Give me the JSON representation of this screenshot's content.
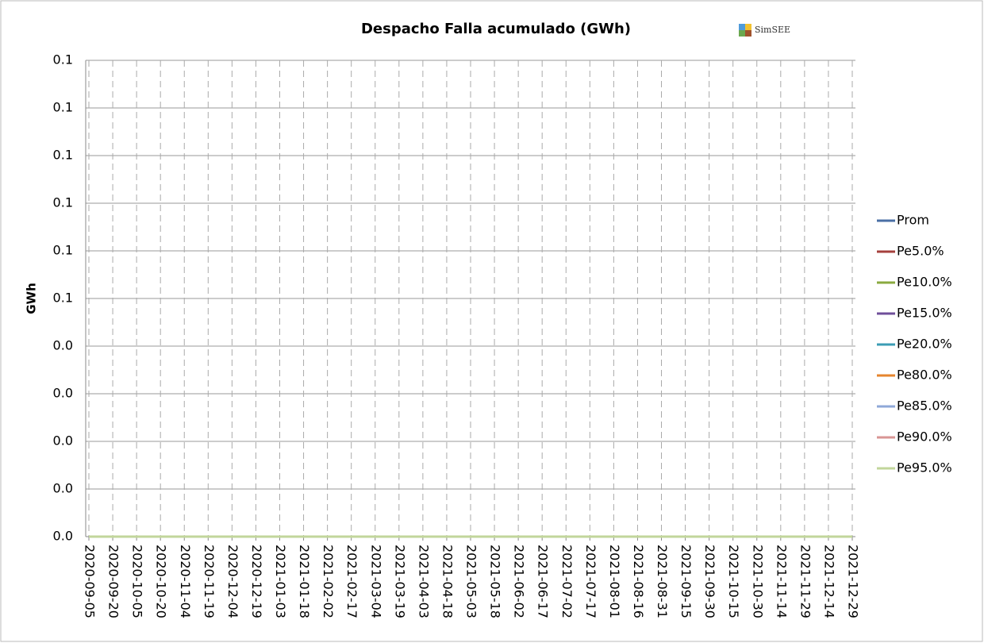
{
  "chart_data": {
    "type": "line",
    "title": "Despacho Falla acumulado (GWh)",
    "annotation": "SimSEE",
    "y_label": "GWh",
    "categories": [
      "2020-09-05",
      "2020-09-20",
      "2020-10-05",
      "2020-10-20",
      "2020-11-04",
      "2020-11-19",
      "2020-12-04",
      "2020-12-19",
      "2021-01-03",
      "2021-01-18",
      "2021-02-02",
      "2021-02-17",
      "2021-03-04",
      "2021-03-19",
      "2021-04-03",
      "2021-04-18",
      "2021-05-03",
      "2021-05-18",
      "2021-06-02",
      "2021-06-17",
      "2021-07-02",
      "2021-07-17",
      "2021-08-01",
      "2021-08-16",
      "2021-08-31",
      "2021-09-15",
      "2021-09-30",
      "2021-10-15",
      "2021-10-30",
      "2021-11-14",
      "2021-11-29",
      "2021-12-14",
      "2021-12-29"
    ],
    "series": [
      {
        "name": "Prom",
        "color": "#4a6fa5",
        "values": [
          0,
          0,
          0,
          0,
          0,
          0,
          0,
          0,
          0,
          0,
          0,
          0,
          0,
          0,
          0,
          0,
          0,
          0,
          0,
          0,
          0,
          0,
          0,
          0,
          0,
          0,
          0,
          0,
          0,
          0,
          0,
          0,
          0
        ]
      },
      {
        "name": "Pe5.0%",
        "color": "#a5403d",
        "values": [
          0,
          0,
          0,
          0,
          0,
          0,
          0,
          0,
          0,
          0,
          0,
          0,
          0,
          0,
          0,
          0,
          0,
          0,
          0,
          0,
          0,
          0,
          0,
          0,
          0,
          0,
          0,
          0,
          0,
          0,
          0,
          0,
          0
        ]
      },
      {
        "name": "Pe10.0%",
        "color": "#8aaa3f",
        "values": [
          0,
          0,
          0,
          0,
          0,
          0,
          0,
          0,
          0,
          0,
          0,
          0,
          0,
          0,
          0,
          0,
          0,
          0,
          0,
          0,
          0,
          0,
          0,
          0,
          0,
          0,
          0,
          0,
          0,
          0,
          0,
          0,
          0
        ]
      },
      {
        "name": "Pe15.0%",
        "color": "#6f4f9a",
        "values": [
          0,
          0,
          0,
          0,
          0,
          0,
          0,
          0,
          0,
          0,
          0,
          0,
          0,
          0,
          0,
          0,
          0,
          0,
          0,
          0,
          0,
          0,
          0,
          0,
          0,
          0,
          0,
          0,
          0,
          0,
          0,
          0,
          0
        ]
      },
      {
        "name": "Pe20.0%",
        "color": "#3c9db5",
        "values": [
          0,
          0,
          0,
          0,
          0,
          0,
          0,
          0,
          0,
          0,
          0,
          0,
          0,
          0,
          0,
          0,
          0,
          0,
          0,
          0,
          0,
          0,
          0,
          0,
          0,
          0,
          0,
          0,
          0,
          0,
          0,
          0,
          0
        ]
      },
      {
        "name": "Pe80.0%",
        "color": "#e6852e",
        "values": [
          0,
          0,
          0,
          0,
          0,
          0,
          0,
          0,
          0,
          0,
          0,
          0,
          0,
          0,
          0,
          0,
          0,
          0,
          0,
          0,
          0,
          0,
          0,
          0,
          0,
          0,
          0,
          0,
          0,
          0,
          0,
          0,
          0
        ]
      },
      {
        "name": "Pe85.0%",
        "color": "#8fa8d8",
        "values": [
          0,
          0,
          0,
          0,
          0,
          0,
          0,
          0,
          0,
          0,
          0,
          0,
          0,
          0,
          0,
          0,
          0,
          0,
          0,
          0,
          0,
          0,
          0,
          0,
          0,
          0,
          0,
          0,
          0,
          0,
          0,
          0,
          0
        ]
      },
      {
        "name": "Pe90.0%",
        "color": "#d99594",
        "values": [
          0,
          0,
          0,
          0,
          0,
          0,
          0,
          0,
          0,
          0,
          0,
          0,
          0,
          0,
          0,
          0,
          0,
          0,
          0,
          0,
          0,
          0,
          0,
          0,
          0,
          0,
          0,
          0,
          0,
          0,
          0,
          0,
          0
        ]
      },
      {
        "name": "Pe95.0%",
        "color": "#c2d69b",
        "values": [
          0,
          0,
          0,
          0,
          0,
          0,
          0,
          0,
          0,
          0,
          0,
          0,
          0,
          0,
          0,
          0,
          0,
          0,
          0,
          0,
          0,
          0,
          0,
          0,
          0,
          0,
          0,
          0,
          0,
          0,
          0,
          0,
          0
        ]
      }
    ],
    "ylim": [
      0,
      0.1
    ],
    "yticks": [
      {
        "value": 0,
        "label": "0.0"
      },
      {
        "value": 0.01,
        "label": "0.0"
      },
      {
        "value": 0.02,
        "label": "0.0"
      },
      {
        "value": 0.03,
        "label": "0.0"
      },
      {
        "value": 0.04,
        "label": "0.0"
      },
      {
        "value": 0.05,
        "label": "0.1"
      },
      {
        "value": 0.06,
        "label": "0.1"
      },
      {
        "value": 0.07,
        "label": "0.1"
      },
      {
        "value": 0.08,
        "label": "0.1"
      },
      {
        "value": 0.09,
        "label": "0.1"
      },
      {
        "value": 0.1,
        "label": "0.1"
      }
    ],
    "grid": true,
    "legend": "right"
  }
}
